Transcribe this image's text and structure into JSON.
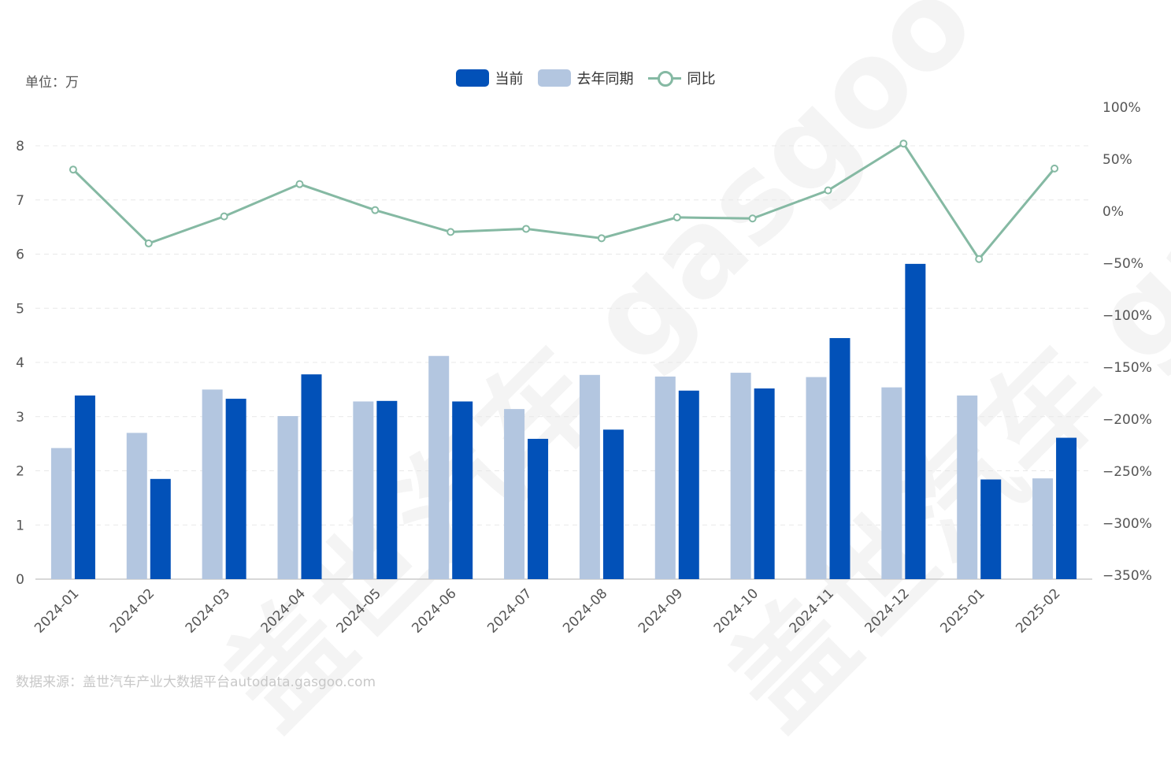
{
  "unit_label": "单位：万",
  "source_label": "数据来源：盖世汽车产业大数据平台autodata.gasgoo.com",
  "watermark": "盖世汽车 gasgoo",
  "legend": {
    "current": "当前",
    "last_year": "去年同期",
    "yoy": "同比"
  },
  "colors": {
    "current": "#0251b8",
    "last_year": "#b3c6e0",
    "yoy": "#85b9a3",
    "grid": "#e8e8e8",
    "axis": "#cccccc"
  },
  "chart_data": {
    "type": "bar",
    "categories": [
      "2024-01",
      "2024-02",
      "2024-03",
      "2024-04",
      "2024-05",
      "2024-06",
      "2024-07",
      "2024-08",
      "2024-09",
      "2024-10",
      "2024-11",
      "2024-12",
      "2025-01",
      "2025-02"
    ],
    "series": [
      {
        "name": "去年同期",
        "type": "bar",
        "axis": "left",
        "values": [
          2.42,
          2.7,
          3.5,
          3.01,
          3.28,
          4.12,
          3.14,
          3.77,
          3.74,
          3.81,
          3.73,
          3.54,
          3.39,
          1.86
        ]
      },
      {
        "name": "当前",
        "type": "bar",
        "axis": "left",
        "values": [
          3.39,
          1.85,
          3.33,
          3.78,
          3.29,
          3.28,
          2.59,
          2.76,
          3.48,
          3.52,
          4.45,
          5.82,
          1.84,
          2.61
        ]
      },
      {
        "name": "同比",
        "type": "line",
        "axis": "right",
        "unit": "%",
        "values": [
          40,
          -31,
          -5,
          26,
          1,
          -20,
          -17,
          -26,
          -6,
          -7,
          20,
          65,
          -46,
          41
        ]
      }
    ],
    "y_left": {
      "ticks": [
        "0",
        "1",
        "2",
        "3",
        "4",
        "5",
        "6",
        "7",
        "8"
      ],
      "min": 0,
      "max": 8
    },
    "y_right": {
      "ticks": [
        "100%",
        "50%",
        "0%",
        "−50%",
        "−100%",
        "−150%",
        "−200%",
        "−250%",
        "−300%",
        "−350%"
      ],
      "min": -350,
      "max": 100
    },
    "legend_position": "top-center",
    "grid": true
  }
}
